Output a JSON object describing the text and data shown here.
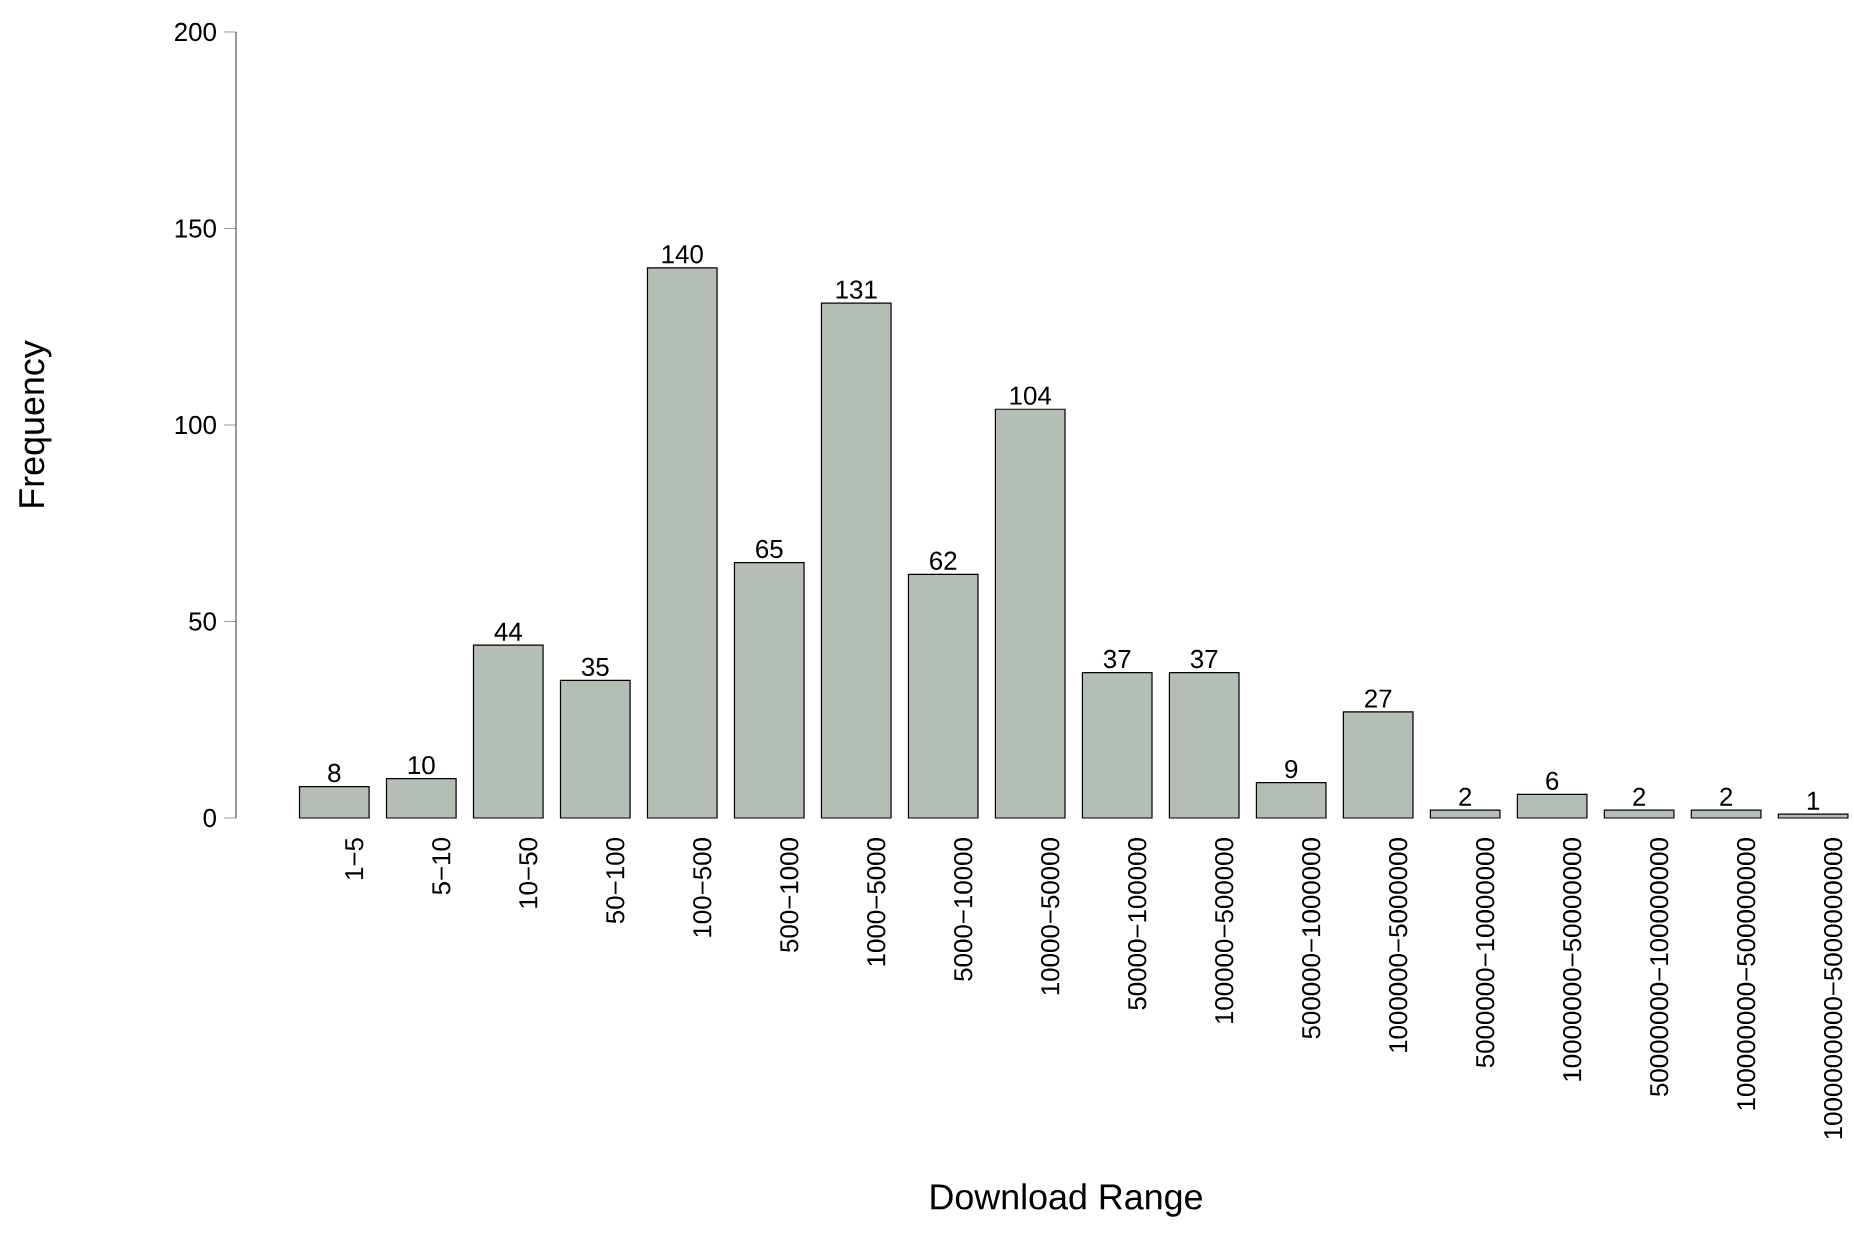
{
  "chart_data": {
    "type": "bar",
    "xlabel": "Download Range",
    "ylabel": "Frequency",
    "categories": [
      "1−5",
      "5−10",
      "10−50",
      "50−100",
      "100−500",
      "500−1000",
      "1000−5000",
      "5000−10000",
      "10000−50000",
      "50000−100000",
      "100000−500000",
      "500000−1000000",
      "1000000−5000000",
      "5000000−10000000",
      "10000000−50000000",
      "50000000−100000000",
      "100000000−500000000",
      "1000000000−5000000000"
    ],
    "values": [
      8,
      10,
      44,
      35,
      140,
      65,
      131,
      62,
      104,
      37,
      37,
      9,
      27,
      2,
      6,
      2,
      2,
      1
    ],
    "color": "#b4beb5",
    "ylim": [
      0,
      200
    ],
    "yticks": [
      0,
      50,
      100,
      150,
      200
    ],
    "data_labels": true,
    "grid": false
  }
}
